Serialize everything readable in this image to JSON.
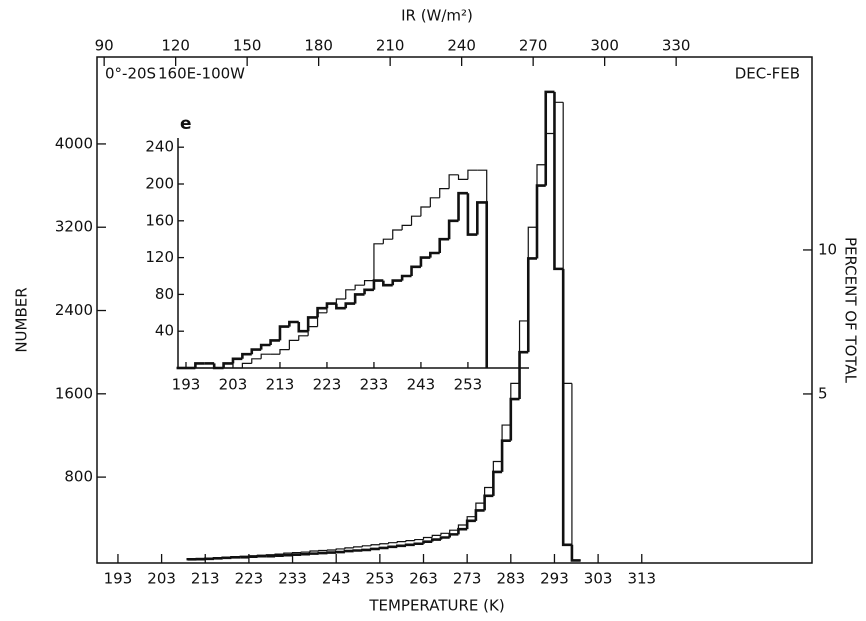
{
  "chart_data": [
    {
      "type": "histogram",
      "x_label": "TEMPERATURE (K)",
      "y_label": "NUMBER",
      "y2_label": "PERCENT OF TOTAL",
      "x2_label": "IR (W/m²)",
      "annotations": [
        "0°-20S",
        "160E-100W",
        "DEC-FEB"
      ],
      "bins": [
        209,
        211,
        213,
        215,
        217,
        219,
        221,
        223,
        225,
        227,
        229,
        231,
        233,
        235,
        237,
        239,
        241,
        243,
        245,
        247,
        249,
        251,
        253,
        255,
        257,
        259,
        261,
        263,
        265,
        267,
        269,
        271,
        273,
        275,
        277,
        279,
        281,
        283,
        285,
        287,
        289,
        291,
        293,
        295,
        297,
        299
      ],
      "series": [
        {
          "color": "#111111",
          "line_width": 2.6,
          "values": [
            10,
            12,
            15,
            20,
            25,
            30,
            30,
            35,
            40,
            40,
            45,
            50,
            55,
            60,
            65,
            70,
            75,
            80,
            90,
            95,
            100,
            110,
            120,
            130,
            140,
            150,
            160,
            180,
            200,
            220,
            250,
            300,
            380,
            480,
            620,
            850,
            1150,
            1550,
            2000,
            2900,
            3600,
            4500,
            2800,
            150,
            0
          ]
        },
        {
          "color": "#111111",
          "line_width": 1.2,
          "values": [
            15,
            18,
            20,
            25,
            30,
            35,
            40,
            45,
            50,
            55,
            60,
            70,
            75,
            80,
            90,
            95,
            100,
            110,
            120,
            130,
            140,
            150,
            160,
            170,
            180,
            190,
            200,
            220,
            240,
            260,
            290,
            340,
            420,
            550,
            700,
            950,
            1300,
            1700,
            2300,
            3200,
            3800,
            4100,
            4400,
            1700,
            0
          ]
        }
      ],
      "xlim": [
        188.2,
        352
      ],
      "xticks": [
        193,
        203,
        213,
        223,
        233,
        243,
        253,
        263,
        273,
        283,
        293,
        303,
        313
      ],
      "ylim": [
        -25,
        4835
      ],
      "yticks": [
        800,
        1600,
        2400,
        3200,
        4000
      ],
      "x2lim": [
        87,
        387
      ],
      "x2ticks": [
        90,
        120,
        150,
        180,
        210,
        240,
        270,
        300,
        330
      ],
      "y2lim": [
        -0.87,
        16.7
      ],
      "y2ticks": [
        5,
        10
      ]
    },
    {
      "type": "histogram",
      "label": "e",
      "bins": [
        191,
        193,
        195,
        197,
        199,
        201,
        203,
        205,
        207,
        209,
        211,
        213,
        215,
        217,
        219,
        221,
        223,
        225,
        227,
        229,
        231,
        233,
        235,
        237,
        239,
        241,
        243,
        245,
        247,
        249,
        251,
        253,
        255,
        257
      ],
      "series": [
        {
          "color": "#111111",
          "line_width": 2.6,
          "values": [
            0,
            0,
            5,
            5,
            0,
            5,
            10,
            15,
            20,
            25,
            30,
            45,
            50,
            40,
            55,
            65,
            70,
            65,
            70,
            80,
            85,
            95,
            90,
            95,
            100,
            110,
            120,
            125,
            140,
            160,
            190,
            145,
            180
          ]
        },
        {
          "color": "#111111",
          "line_width": 1.2,
          "values": [
            0,
            0,
            0,
            0,
            0,
            0,
            0,
            5,
            10,
            15,
            15,
            20,
            30,
            35,
            45,
            60,
            70,
            75,
            85,
            90,
            95,
            135,
            140,
            150,
            155,
            165,
            175,
            185,
            195,
            210,
            205,
            215,
            215
          ]
        }
      ],
      "xlim": [
        191.3,
        266
      ],
      "xticks": [
        193,
        203,
        213,
        223,
        233,
        243,
        253
      ],
      "ylim": [
        0,
        250
      ],
      "yticks": [
        40,
        80,
        120,
        160,
        200,
        240
      ]
    }
  ]
}
